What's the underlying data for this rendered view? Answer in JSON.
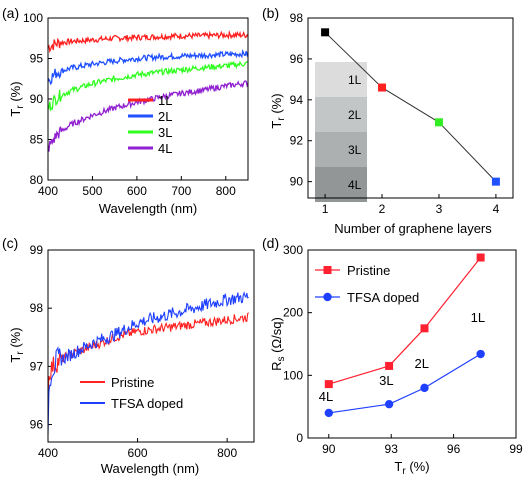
{
  "figure": {
    "swatch_labels": [
      "1L",
      "2L",
      "3L",
      "4L"
    ],
    "swatch_colors": [
      "#dcdcdc",
      "#c3c6c6",
      "#acb0b0",
      "#929696"
    ]
  },
  "chart_data": [
    {
      "panel": "(a)",
      "type": "line",
      "xlabel": "Wavelength (nm)",
      "ylabel": "T_r (%)",
      "xlim": [
        400,
        850
      ],
      "ylim": [
        80,
        100
      ],
      "xticks": [
        400,
        500,
        600,
        700,
        800
      ],
      "yticks": [
        80,
        85,
        90,
        95,
        100
      ],
      "grid": false,
      "legend_position": "bottom-right",
      "series": [
        {
          "name": "1L",
          "color": "#ff2020",
          "x": [
            400,
            420,
            450,
            500,
            550,
            600,
            650,
            700,
            750,
            800,
            850
          ],
          "values": [
            96.4,
            96.9,
            97.1,
            97.3,
            97.5,
            97.6,
            97.7,
            97.8,
            97.8,
            97.9,
            97.9
          ]
        },
        {
          "name": "2L",
          "color": "#2050ff",
          "x": [
            400,
            420,
            450,
            500,
            550,
            600,
            650,
            700,
            750,
            800,
            850
          ],
          "values": [
            92.3,
            93.3,
            93.8,
            94.3,
            94.7,
            95.0,
            95.2,
            95.3,
            95.4,
            95.5,
            95.6
          ]
        },
        {
          "name": "3L",
          "color": "#30ff20",
          "x": [
            400,
            420,
            450,
            500,
            550,
            600,
            650,
            700,
            750,
            800,
            850
          ],
          "values": [
            88.9,
            90.2,
            91.0,
            91.9,
            92.5,
            93.0,
            93.3,
            93.6,
            93.9,
            94.1,
            94.4
          ]
        },
        {
          "name": "4L",
          "color": "#9020d0",
          "x": [
            400,
            420,
            450,
            500,
            550,
            600,
            650,
            700,
            750,
            800,
            850
          ],
          "values": [
            83.9,
            85.6,
            86.8,
            88.0,
            88.9,
            89.6,
            90.2,
            90.7,
            91.1,
            91.6,
            92.0
          ]
        }
      ]
    },
    {
      "panel": "(b)",
      "type": "line",
      "xlabel": "Number of graphene layers",
      "ylabel": "T_r (%)",
      "xlim": [
        0.7,
        4.3
      ],
      "ylim": [
        89.2,
        98
      ],
      "xticks": [
        1,
        2,
        3,
        4
      ],
      "yticks": [
        90,
        92,
        94,
        96,
        98
      ],
      "grid": false,
      "x": [
        1,
        2,
        3,
        4
      ],
      "values": [
        97.3,
        94.6,
        92.9,
        90.0
      ],
      "marker_colors": [
        "#000000",
        "#ff2020",
        "#30ee20",
        "#2050ff"
      ]
    },
    {
      "panel": "(c)",
      "type": "line",
      "xlabel": "Wavelength (nm)",
      "ylabel": "T_r (%)",
      "xlim": [
        400,
        860
      ],
      "ylim": [
        95.7,
        99
      ],
      "xticks": [
        400,
        600,
        800
      ],
      "yticks": [
        96,
        97,
        98,
        99
      ],
      "grid": false,
      "legend_position": "bottom-center",
      "series": [
        {
          "name": "Pristine",
          "color": "#ff2020",
          "x": [
            400,
            403,
            410,
            425,
            450,
            500,
            550,
            600,
            650,
            700,
            750,
            800,
            850
          ],
          "values": [
            96.6,
            96.9,
            97.0,
            97.1,
            97.2,
            97.35,
            97.5,
            97.6,
            97.65,
            97.7,
            97.75,
            97.8,
            97.85
          ]
        },
        {
          "name": "TFSA doped",
          "color": "#2040ff",
          "x": [
            400,
            403,
            410,
            425,
            450,
            500,
            550,
            600,
            650,
            700,
            750,
            800,
            850
          ],
          "values": [
            96.0,
            96.8,
            97.0,
            97.1,
            97.2,
            97.4,
            97.55,
            97.75,
            97.85,
            97.95,
            98.05,
            98.15,
            98.2
          ]
        }
      ]
    },
    {
      "panel": "(d)",
      "type": "line",
      "xlabel": "T_r (%)",
      "ylabel": "R_s (Ω/sq)",
      "xlim": [
        89,
        99
      ],
      "ylim": [
        0,
        300
      ],
      "xticks": [
        90,
        93,
        96,
        99
      ],
      "yticks": [
        0,
        100,
        200,
        300
      ],
      "grid": false,
      "legend_position": "top-left",
      "layer_labels": [
        "4L",
        "3L",
        "2L",
        "1L"
      ],
      "series": [
        {
          "name": "Pristine",
          "color": "#ff2030",
          "marker": "square",
          "x": [
            90.0,
            92.9,
            94.6,
            97.3
          ],
          "values": [
            86,
            115,
            175,
            288
          ]
        },
        {
          "name": "TFSA doped",
          "color": "#2040ff",
          "marker": "circle",
          "x": [
            90.0,
            92.9,
            94.6,
            97.3
          ],
          "values": [
            40,
            54,
            80,
            134
          ]
        }
      ]
    }
  ]
}
